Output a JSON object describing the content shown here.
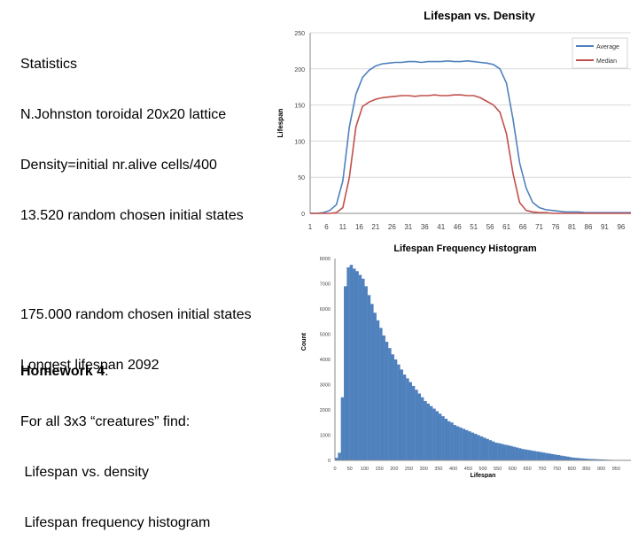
{
  "text_blocks": {
    "stats": [
      "Statistics",
      "N.Johnston toroidal 20x20 lattice",
      "Density=initial nr.alive cells/400",
      "13.520 random chosen initial states"
    ],
    "random": [
      "175.000 random chosen initial states",
      "Longest lifespan 2092"
    ],
    "homework_title": "Homework 4",
    "homework_colon": ":",
    "homework_items": [
      "For all 3x3 “creatures” find:",
      " Lifespan vs. density",
      " Lifespan frequency histogram"
    ]
  },
  "colors": {
    "average": "#4f81bd",
    "median": "#c0504d",
    "bars": "#4f81bd",
    "gridline": "#d9d9d9"
  },
  "chart_data": [
    {
      "type": "line",
      "title": "Lifespan vs. Density",
      "xlabel": "",
      "ylabel": "Lifespan",
      "ylim": [
        0,
        250
      ],
      "yticks": [
        "0",
        "50",
        "100",
        "150",
        "200",
        "250"
      ],
      "x_tick_labels": [
        "1",
        "6",
        "11",
        "16",
        "21",
        "26",
        "31",
        "36",
        "41",
        "46",
        "51",
        "56",
        "61",
        "66",
        "71",
        "76",
        "81",
        "86",
        "91",
        "96"
      ],
      "legend_position": "top-right",
      "x": [
        1,
        3,
        5,
        7,
        9,
        11,
        13,
        15,
        17,
        19,
        21,
        23,
        25,
        27,
        29,
        31,
        33,
        35,
        37,
        39,
        41,
        43,
        45,
        47,
        49,
        51,
        53,
        55,
        57,
        59,
        61,
        63,
        65,
        67,
        69,
        71,
        73,
        75,
        77,
        79,
        81,
        83,
        85,
        87,
        89,
        91,
        93,
        95,
        97,
        99
      ],
      "series": [
        {
          "name": "Average",
          "values": [
            0,
            0,
            1,
            4,
            12,
            45,
            120,
            165,
            188,
            198,
            204,
            207,
            208,
            209,
            209,
            210,
            210,
            209,
            210,
            210,
            210,
            211,
            210,
            210,
            211,
            210,
            209,
            208,
            206,
            200,
            180,
            130,
            70,
            35,
            15,
            8,
            5,
            4,
            3,
            2,
            2,
            2,
            1,
            1,
            1,
            1,
            1,
            1,
            1,
            1
          ]
        },
        {
          "name": "Median",
          "values": [
            0,
            0,
            0,
            0,
            1,
            8,
            50,
            120,
            148,
            154,
            158,
            160,
            161,
            162,
            163,
            163,
            162,
            163,
            163,
            164,
            163,
            163,
            164,
            164,
            163,
            163,
            160,
            155,
            150,
            140,
            110,
            55,
            15,
            4,
            2,
            1,
            1,
            0,
            0,
            0,
            0,
            0,
            0,
            0,
            0,
            0,
            0,
            0,
            0,
            0
          ]
        }
      ]
    },
    {
      "type": "bar",
      "title": "Lifespan Frequency Histogram",
      "xlabel": "Lifespan",
      "ylabel": "Count",
      "ylim": [
        0,
        8000
      ],
      "yticks": [
        "0",
        "1000",
        "2000",
        "3000",
        "4000",
        "5000",
        "6000",
        "7000",
        "8000"
      ],
      "x_tick_labels": [
        "0",
        "50",
        "100",
        "150",
        "200",
        "250",
        "300",
        "350",
        "400",
        "450",
        "500",
        "550",
        "600",
        "650",
        "700",
        "750",
        "800",
        "850",
        "900",
        "950"
      ],
      "bin_width": 10,
      "values": [
        100,
        300,
        2500,
        6900,
        7650,
        7750,
        7600,
        7500,
        7350,
        7200,
        6900,
        6550,
        6200,
        5850,
        5550,
        5250,
        4950,
        4700,
        4450,
        4200,
        4000,
        3800,
        3600,
        3400,
        3250,
        3100,
        2950,
        2800,
        2650,
        2500,
        2350,
        2250,
        2150,
        2050,
        1950,
        1850,
        1750,
        1650,
        1550,
        1500,
        1400,
        1350,
        1300,
        1250,
        1200,
        1150,
        1100,
        1050,
        1000,
        950,
        900,
        850,
        800,
        750,
        700,
        680,
        650,
        620,
        600,
        570,
        540,
        510,
        480,
        450,
        430,
        410,
        390,
        370,
        350,
        330,
        310,
        290,
        270,
        250,
        230,
        210,
        190,
        170,
        150,
        130,
        110,
        100,
        90,
        80,
        70,
        60,
        55,
        50,
        45,
        40,
        35,
        30,
        25,
        20,
        15,
        12,
        10,
        8,
        5,
        3
      ]
    }
  ]
}
